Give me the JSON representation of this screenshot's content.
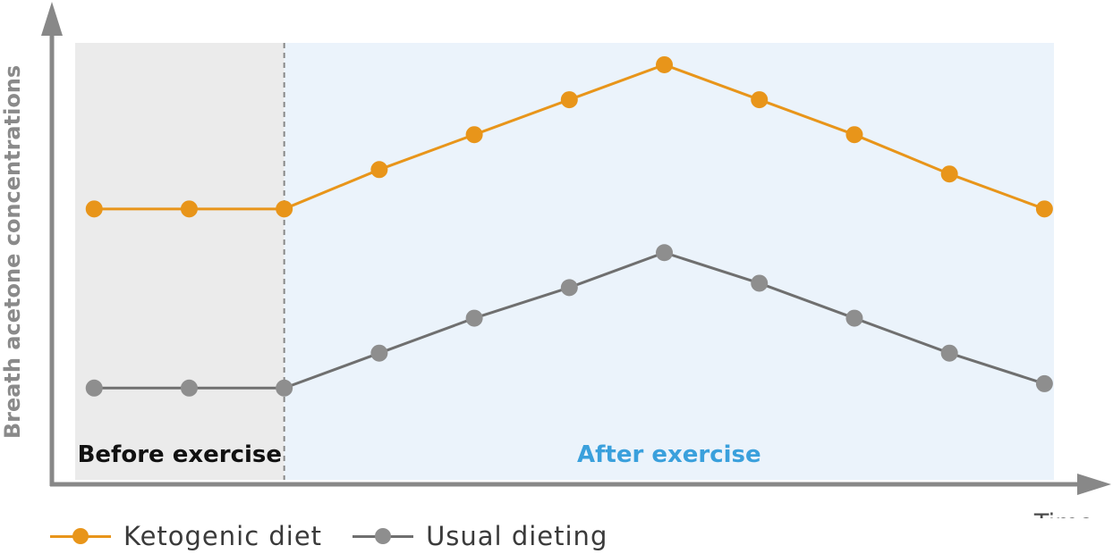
{
  "chart_data": {
    "type": "line",
    "x": [
      1,
      2,
      3,
      4,
      5,
      6,
      7,
      8,
      9,
      10,
      11
    ],
    "xlabel": "Time",
    "ylabel": "Breath acetone concentrations",
    "series": [
      {
        "name": "Ketogenic diet",
        "color": "#E8951A",
        "values": [
          6.2,
          6.2,
          6.2,
          7.1,
          7.9,
          8.7,
          9.5,
          8.7,
          7.9,
          7.0,
          6.2
        ]
      },
      {
        "name": "Usual dieting",
        "color": "#8E8E8E",
        "values": [
          2.1,
          2.1,
          2.1,
          2.9,
          3.7,
          4.4,
          5.2,
          4.5,
          3.7,
          2.9,
          2.2
        ]
      }
    ],
    "regions": [
      {
        "label": "Before exercise",
        "x_start": 0.8,
        "x_end": 3.0,
        "color": "#EBEBEB",
        "label_color": "#111111"
      },
      {
        "label": "After exercise",
        "x_start": 3.0,
        "x_end": 11.1,
        "color": "#EBF3FB",
        "label_color": "#3AA0DC"
      }
    ],
    "xlim": [
      0.8,
      11.1
    ],
    "ylim": [
      0,
      10
    ],
    "grid": false,
    "legend_position": "bottom-left",
    "axis_color": "#888888"
  }
}
